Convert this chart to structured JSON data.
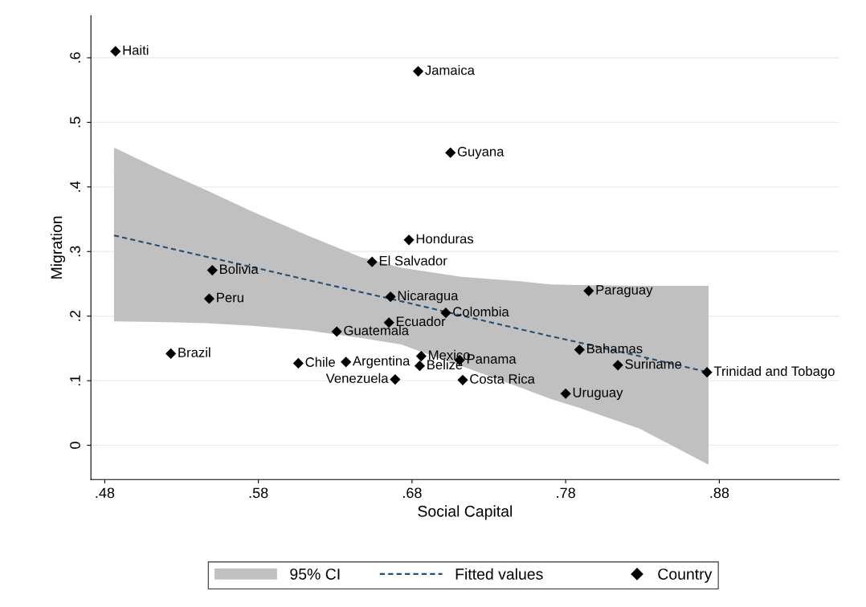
{
  "chart_data": {
    "type": "scatter",
    "xlabel": "Social Capital",
    "ylabel": "Migration",
    "xlim": [
      0.471,
      0.958
    ],
    "xticks": [
      {
        "value": 0.48,
        "label": ".48"
      },
      {
        "value": 0.58,
        "label": ".58"
      },
      {
        "value": 0.68,
        "label": ".68"
      },
      {
        "value": 0.78,
        "label": ".78"
      },
      {
        "value": 0.88,
        "label": ".88"
      }
    ],
    "ylim": [
      -0.053,
      0.665
    ],
    "yticks": [
      0,
      {
        "value": 0.1,
        "label": ".1"
      },
      {
        "value": 0.2,
        "label": ".2"
      },
      {
        "value": 0.3,
        "label": ".3"
      },
      {
        "value": 0.4,
        "label": ".4"
      },
      {
        "value": 0.5,
        "label": ".5"
      },
      {
        "value": 0.6,
        "label": ".6"
      }
    ],
    "grid": "y",
    "legend": "bottom",
    "series": [
      {
        "name": "Fitted values",
        "type": "line",
        "color": "#1f4e79",
        "line_style": "dashed",
        "marker": "none",
        "x": [
          0.486,
          0.515,
          0.546,
          0.576,
          0.612,
          0.647,
          0.673,
          0.712,
          0.75,
          0.77,
          0.789,
          0.828,
          0.873
        ],
        "values": [
          0.325,
          0.309,
          0.292,
          0.276,
          0.256,
          0.237,
          0.223,
          0.201,
          0.18,
          0.169,
          0.159,
          0.138,
          0.113
        ],
        "upper": [
          0.461,
          0.428,
          0.395,
          0.362,
          0.325,
          0.291,
          0.275,
          0.261,
          0.254,
          0.249,
          0.248,
          0.247,
          0.247
        ],
        "lower": [
          0.192,
          0.191,
          0.189,
          0.185,
          0.178,
          0.166,
          0.156,
          0.123,
          0.09,
          0.072,
          0.058,
          0.026,
          -0.03
        ]
      },
      {
        "name": "Country",
        "color": "#000000",
        "marker": "diamond",
        "x": [
          0.487,
          0.684,
          0.705,
          0.678,
          0.654,
          0.55,
          0.548,
          0.666,
          0.702,
          0.795,
          0.665,
          0.631,
          0.789,
          0.523,
          0.606,
          0.637,
          0.686,
          0.685,
          0.711,
          0.814,
          0.872,
          0.669,
          0.713,
          0.78
        ],
        "values": [
          0.61,
          0.579,
          0.453,
          0.318,
          0.284,
          0.271,
          0.227,
          0.23,
          0.205,
          0.239,
          0.19,
          0.176,
          0.148,
          0.142,
          0.127,
          0.129,
          0.138,
          0.123,
          0.132,
          0.124,
          0.113,
          0.102,
          0.101,
          0.08
        ]
      }
    ],
    "annotations": [
      "95% CI",
      {
        "text": "Haiti",
        "x": 0.487,
        "y": 0.61
      },
      {
        "text": "Jamaica",
        "x": 0.684,
        "y": 0.579
      },
      {
        "text": "Guyana",
        "x": 0.705,
        "y": 0.453
      },
      {
        "text": "Honduras",
        "x": 0.678,
        "y": 0.318
      },
      {
        "text": "El Salvador",
        "x": 0.654,
        "y": 0.284
      },
      {
        "text": "Bolivia",
        "x": 0.55,
        "y": 0.271
      },
      {
        "text": "Peru",
        "x": 0.548,
        "y": 0.227
      },
      {
        "text": "Nicaragua",
        "x": 0.666,
        "y": 0.23
      },
      {
        "text": "Colombia",
        "x": 0.702,
        "y": 0.205
      },
      {
        "text": "Paraguay",
        "x": 0.795,
        "y": 0.239
      },
      {
        "text": "Ecuador",
        "x": 0.665,
        "y": 0.19
      },
      {
        "text": "Guatemala",
        "x": 0.631,
        "y": 0.176
      },
      {
        "text": "Bahamas",
        "x": 0.789,
        "y": 0.148
      },
      {
        "text": "Brazil",
        "x": 0.523,
        "y": 0.142
      },
      {
        "text": "Chile",
        "x": 0.606,
        "y": 0.127
      },
      {
        "text": "Argentina",
        "x": 0.637,
        "y": 0.129
      },
      {
        "text": "Mexico",
        "x": 0.686,
        "y": 0.138
      },
      {
        "text": "Belize",
        "x": 0.685,
        "y": 0.123
      },
      {
        "text": "Panama",
        "x": 0.711,
        "y": 0.132
      },
      {
        "text": "Suriname",
        "x": 0.814,
        "y": 0.124
      },
      {
        "text": "Trinidad and Tobago",
        "x": 0.872,
        "y": 0.113
      },
      {
        "text": "Venezuela",
        "x": 0.669,
        "y": 0.102
      },
      {
        "text": "Costa Rica",
        "x": 0.713,
        "y": 0.101
      },
      {
        "text": "Uruguay",
        "x": 0.78,
        "y": 0.08
      }
    ]
  }
}
